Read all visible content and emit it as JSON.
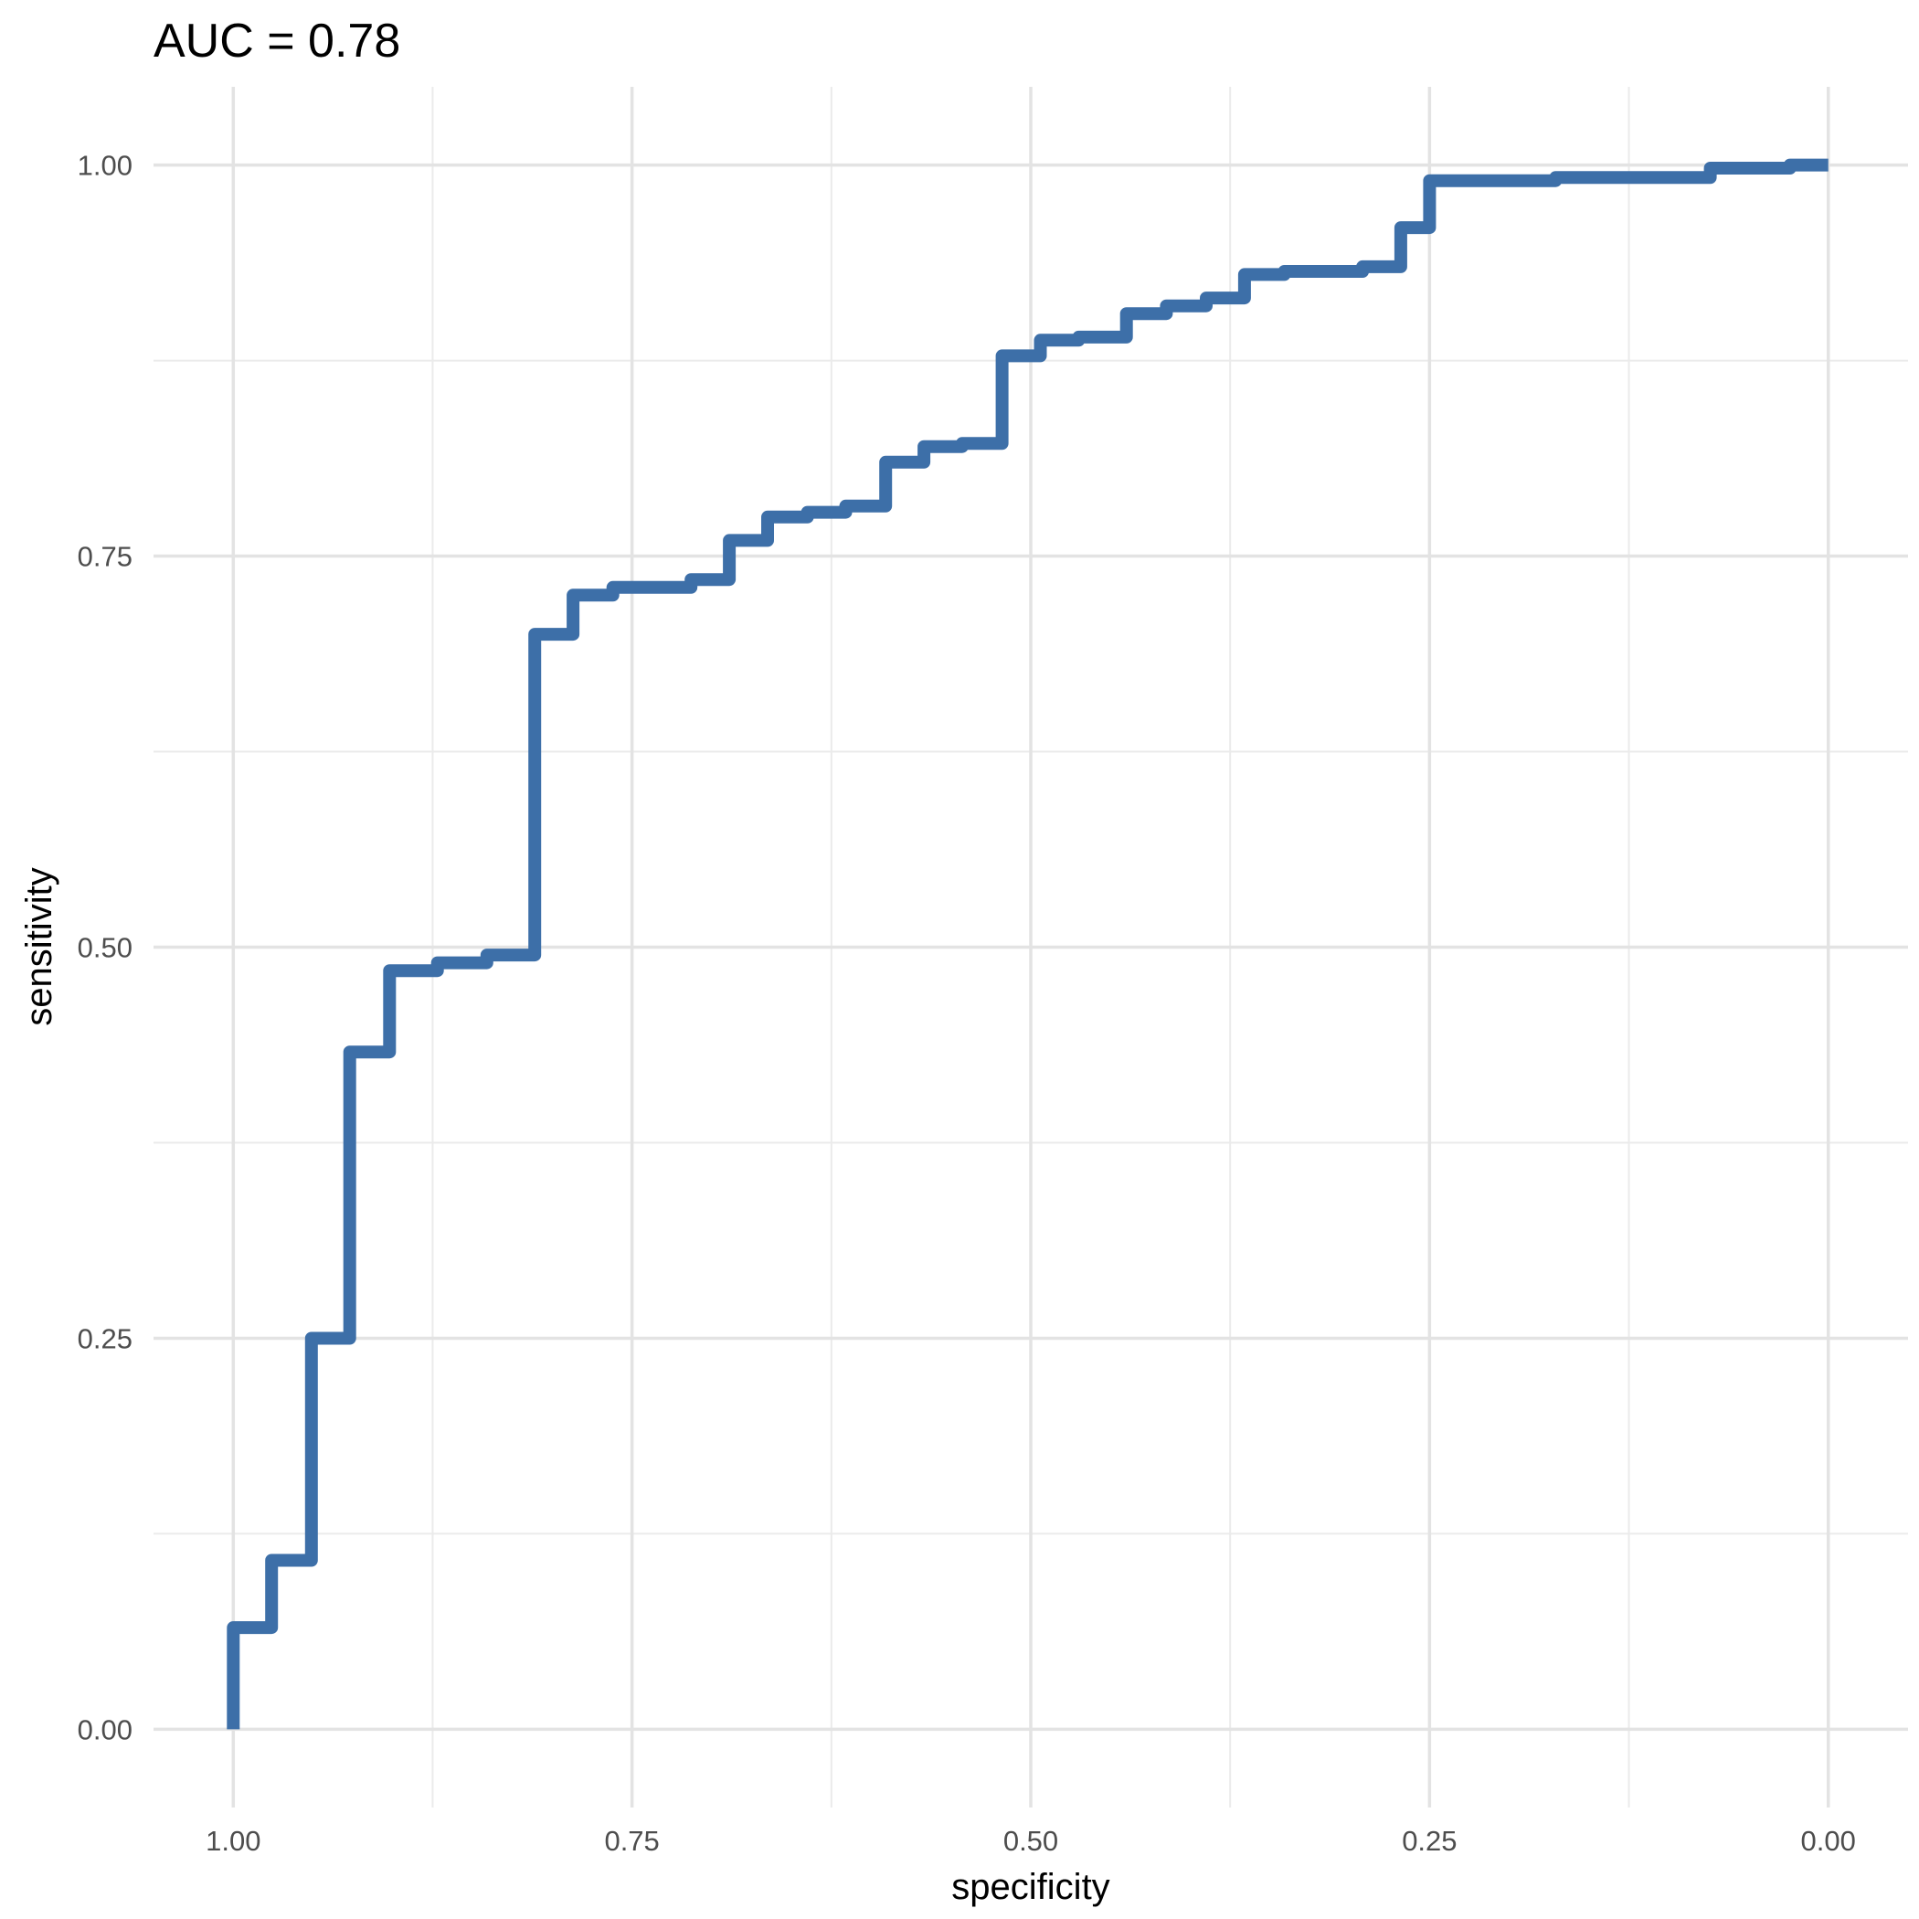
{
  "chart_data": {
    "type": "line",
    "title": "AUC = 0.78",
    "xlabel": "specificity",
    "ylabel": "sensitivity",
    "x_reversed": true,
    "xlim": [
      1.05,
      -0.05
    ],
    "ylim": [
      -0.05,
      1.05
    ],
    "x_ticks": [
      1.0,
      0.75,
      0.5,
      0.25,
      0.0
    ],
    "x_tick_labels": [
      "1.00",
      "0.75",
      "0.50",
      "0.25",
      "0.00"
    ],
    "y_ticks": [
      0.0,
      0.25,
      0.5,
      0.75,
      1.0
    ],
    "y_tick_labels": [
      "0.00",
      "0.25",
      "0.50",
      "0.75",
      "1.00"
    ],
    "grid": true,
    "line_color": "#3d6fa8",
    "series": [
      {
        "specificity": [
          1.0,
          1.0,
          0.976,
          0.976,
          0.951,
          0.951,
          0.927,
          0.927,
          0.927,
          0.902,
          0.902,
          0.872,
          0.872,
          0.841,
          0.841,
          0.841,
          0.811,
          0.811,
          0.787,
          0.787,
          0.762,
          0.762,
          0.738,
          0.738,
          0.713,
          0.713,
          0.689,
          0.689,
          0.665,
          0.665,
          0.64,
          0.64,
          0.616,
          0.616,
          0.591,
          0.591,
          0.567,
          0.567,
          0.543,
          0.543,
          0.518,
          0.518,
          0.494,
          0.494,
          0.47,
          0.47,
          0.44,
          0.44,
          0.415,
          0.415,
          0.39,
          0.39,
          0.366,
          0.366,
          0.341,
          0.341,
          0.317,
          0.317,
          0.292,
          0.292,
          0.268,
          0.268,
          0.25,
          0.25,
          0.232,
          0.232,
          0.171,
          0.171,
          0.074,
          0.074,
          0.024,
          0.024,
          0.0
        ],
        "sensitivity": [
          0.0,
          0.065,
          0.065,
          0.108,
          0.108,
          0.25,
          0.25,
          0.43,
          0.433,
          0.433,
          0.485,
          0.485,
          0.49,
          0.49,
          0.495,
          0.495,
          0.495,
          0.7,
          0.7,
          0.725,
          0.725,
          0.73,
          0.73,
          0.73,
          0.73,
          0.735,
          0.735,
          0.76,
          0.76,
          0.775,
          0.775,
          0.778,
          0.778,
          0.782,
          0.782,
          0.81,
          0.81,
          0.82,
          0.82,
          0.822,
          0.822,
          0.878,
          0.878,
          0.888,
          0.888,
          0.89,
          0.89,
          0.905,
          0.905,
          0.91,
          0.91,
          0.915,
          0.915,
          0.93,
          0.93,
          0.932,
          0.932,
          0.932,
          0.932,
          0.935,
          0.935,
          0.96,
          0.96,
          0.99,
          0.99,
          0.99,
          0.99,
          0.992,
          0.992,
          0.998,
          0.998,
          1.0,
          1.0
        ]
      }
    ]
  }
}
